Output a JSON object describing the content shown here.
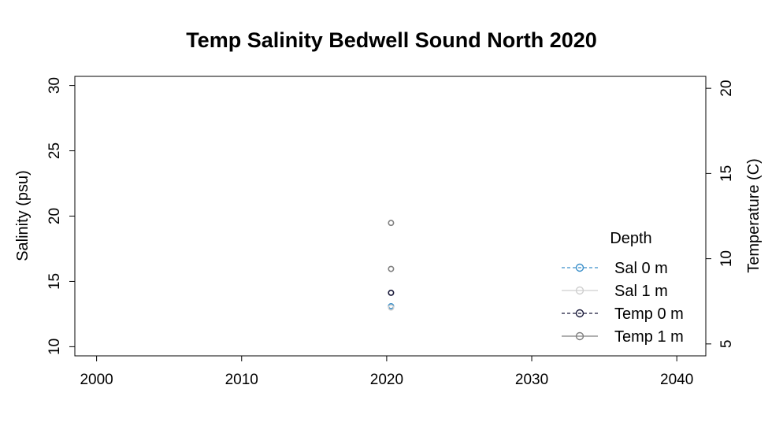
{
  "chart_data": {
    "type": "scatter",
    "title": "Temp Salinity Bedwell Sound North 2020",
    "xlabel": "",
    "ylabel": "Salinity (psu)",
    "y2label": "Temperature (C)",
    "xlim": [
      1998.5,
      2042
    ],
    "ylim": [
      9.3,
      30.7
    ],
    "y2lim": [
      4.3,
      20.7
    ],
    "x_ticks": [
      "2000",
      "2010",
      "2020",
      "2030",
      "2040"
    ],
    "y_ticks": [
      "10",
      "15",
      "20",
      "25",
      "30"
    ],
    "y2_ticks": [
      "5",
      "10",
      "15",
      "20"
    ],
    "legend": {
      "title": "Depth",
      "position": "right",
      "entries": [
        "Sal 0 m",
        "Sal 1 m",
        "Temp 0 m",
        "Temp 1 m"
      ]
    },
    "series": [
      {
        "name": "Sal 0 m",
        "axis": "left",
        "color": "#3a8fc9",
        "line": "dashed",
        "x": [
          2020.3
        ],
        "y": [
          13.1
        ]
      },
      {
        "name": "Sal 1 m",
        "axis": "left",
        "color": "#cfcfcf",
        "line": "solid",
        "x": [
          2020.3
        ],
        "y": [
          13.0
        ]
      },
      {
        "name": "Temp 0 m",
        "axis": "right",
        "color": "#1a1a3a",
        "line": "dashed",
        "x": [
          2020.3
        ],
        "y": [
          8.0
        ]
      },
      {
        "name": "Temp 1 m",
        "axis": "right",
        "color": "#808080",
        "line": "solid",
        "x": [
          2020.3,
          2020.3
        ],
        "y": [
          9.4,
          12.1
        ]
      }
    ]
  }
}
